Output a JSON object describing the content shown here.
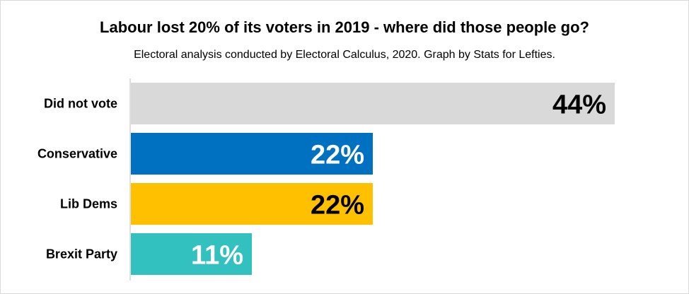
{
  "title": "Labour lost 20% of its voters in 2019 - where did those people go?",
  "subtitle": "Electoral analysis conducted by Electoral Calculus, 2020. Graph by Stats for Lefties.",
  "chart_data": {
    "type": "bar",
    "orientation": "horizontal",
    "title": "Labour lost 20% of its voters in 2019 - where did those people go?",
    "subtitle": "Electoral analysis conducted by Electoral Calculus, 2020. Graph by Stats for Lefties.",
    "categories": [
      "Did not vote",
      "Conservative",
      "Lib Dems",
      "Brexit Party"
    ],
    "values": [
      44,
      22,
      22,
      11
    ],
    "value_labels": [
      "44%",
      "22%",
      "22%",
      "11%"
    ],
    "bar_colors": [
      "#d9d9d9",
      "#0070c0",
      "#ffc000",
      "#33c1bf"
    ],
    "label_colors": [
      "#000000",
      "#ffffff",
      "#000000",
      "#ffffff"
    ],
    "xlim": [
      0,
      44
    ],
    "grid": false,
    "legend": "none"
  }
}
